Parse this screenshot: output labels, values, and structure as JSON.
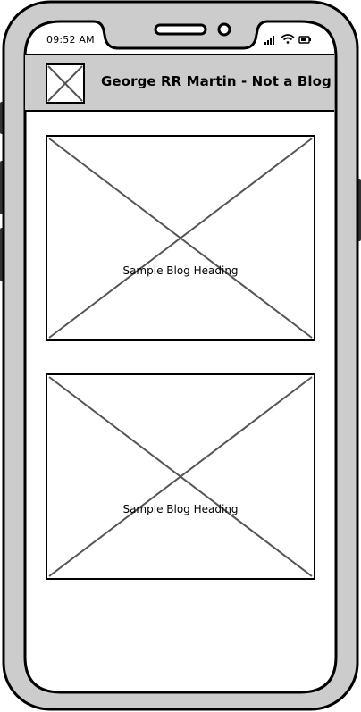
{
  "status_bar": {
    "time": "09:52 AM",
    "icons": [
      "signal-icon",
      "wifi-icon",
      "battery-icon"
    ]
  },
  "header": {
    "logo_icon": "image-placeholder-icon",
    "title": "George RR Martin - Not a Blog"
  },
  "posts": [
    {
      "heading": "Sample Blog Heading",
      "image_icon": "image-placeholder-icon"
    },
    {
      "heading": "Sample Blog Heading",
      "image_icon": "image-placeholder-icon"
    }
  ],
  "colors": {
    "frame_fill": "#cccccc",
    "header_fill": "#cccccc",
    "stroke": "#000000",
    "placeholder_line": "#555555",
    "screen": "#ffffff"
  }
}
